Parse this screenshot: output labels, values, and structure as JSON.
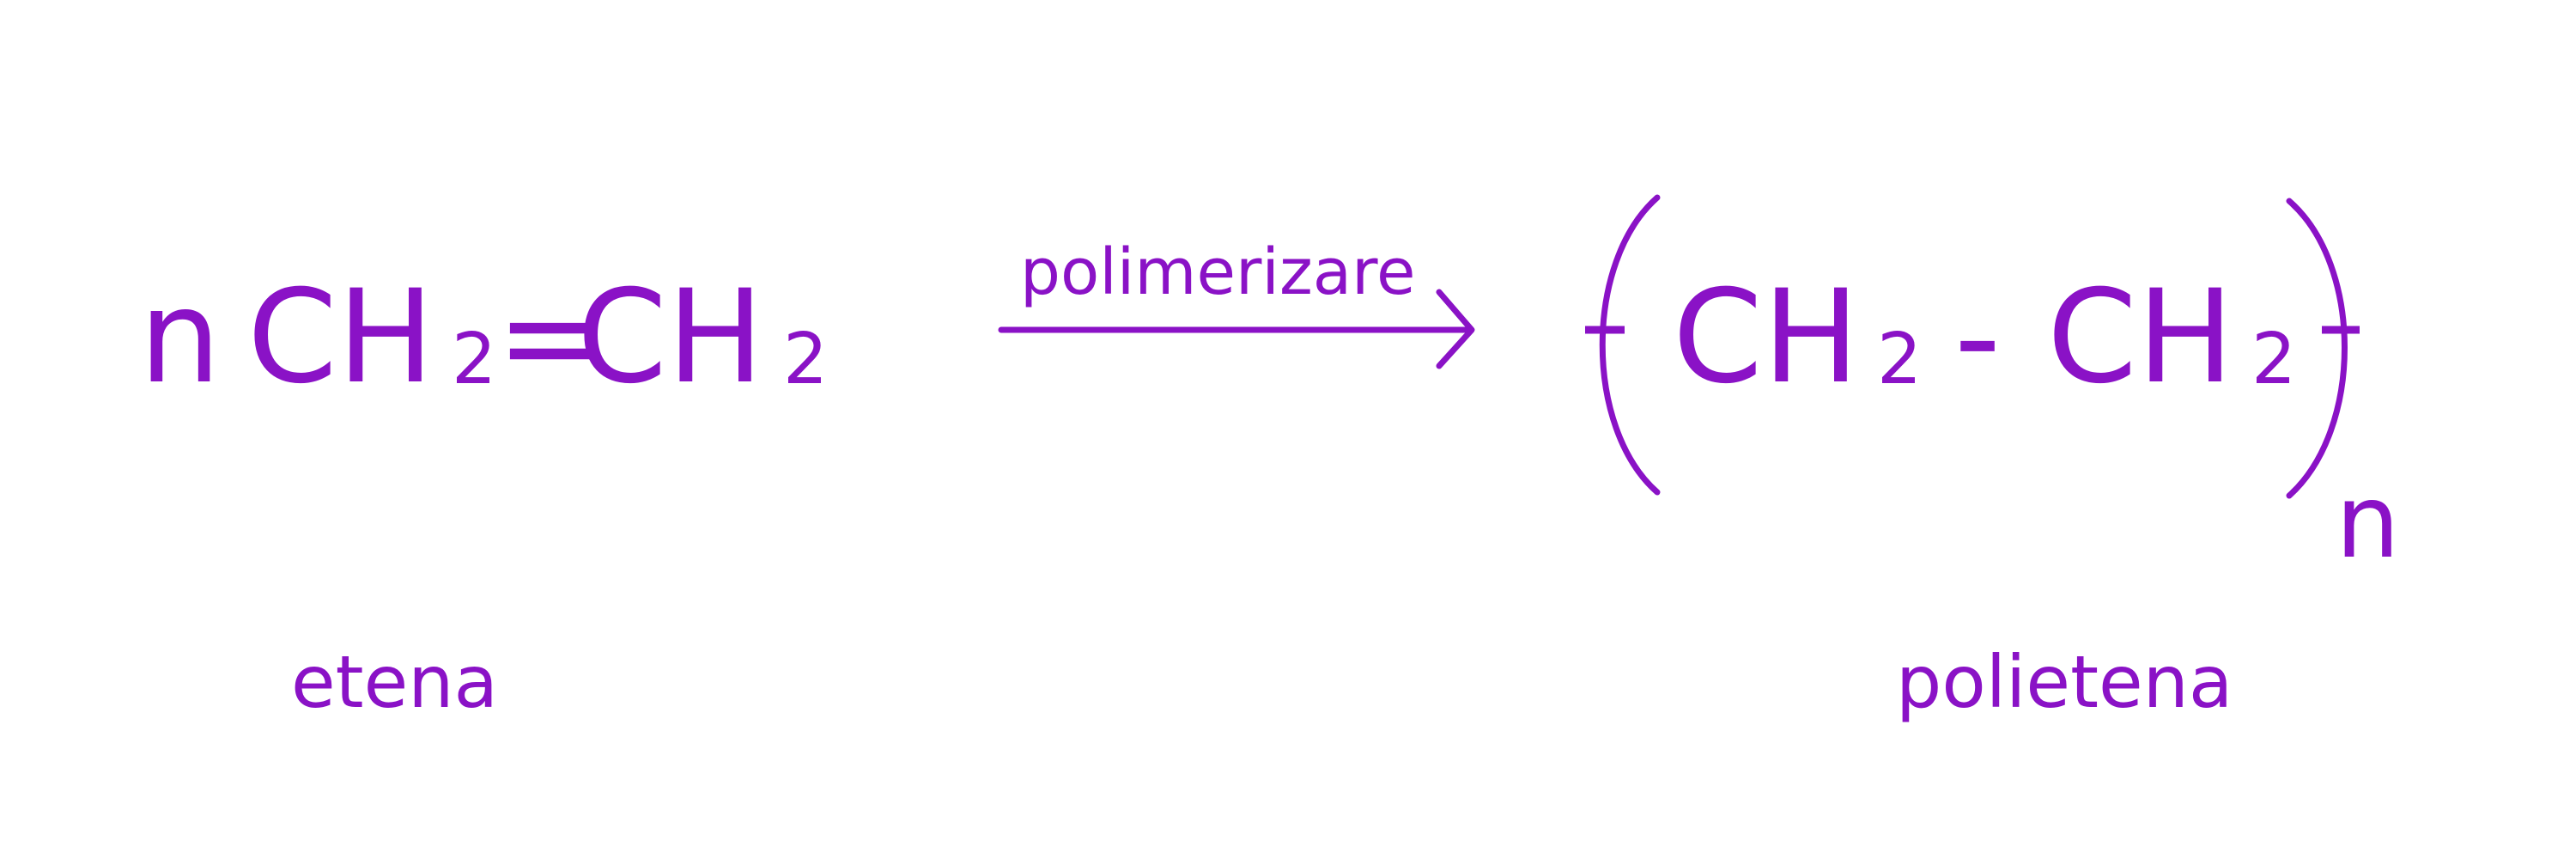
{
  "colors": {
    "accent": "#8a12c6",
    "background": "#ffffff"
  },
  "reactant": {
    "coefficient": "n",
    "group1": "CH",
    "group1_subscript": "2",
    "bond": "=",
    "group2": "CH",
    "group2_subscript": "2",
    "label": "etena"
  },
  "arrow": {
    "condition": "polimerizare"
  },
  "product": {
    "group1": "CH",
    "group1_subscript": "2",
    "bond": "-",
    "group2": "CH",
    "group2_subscript": "2",
    "repeat_index": "n",
    "label": "polietena"
  }
}
